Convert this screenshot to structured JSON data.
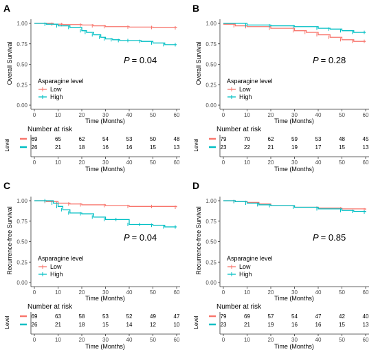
{
  "chart_data": [
    {
      "type": "line",
      "panel_label": "A",
      "ylabel": "Overall Survival",
      "xlabel": "Time (Months)",
      "xlim": [
        0,
        60
      ],
      "ylim": [
        0,
        1
      ],
      "x_ticks": [
        "0",
        "10",
        "20",
        "30",
        "40",
        "50",
        "60"
      ],
      "y_ticks": [
        "0.00",
        "0.25",
        "0.50",
        "0.75",
        "1.00"
      ],
      "p_prefix": "P",
      "p_value": "= 0.04",
      "legend_title": "Asparagine level",
      "legend_position": "bottom-left",
      "series": [
        {
          "name": "Low",
          "color": "#F8766D",
          "x": [
            0,
            8,
            12,
            20,
            25,
            30,
            40,
            50,
            60
          ],
          "y": [
            1.0,
            0.99,
            0.985,
            0.98,
            0.97,
            0.96,
            0.955,
            0.95,
            0.945
          ]
        },
        {
          "name": "High",
          "color": "#00BFC4",
          "x": [
            0,
            5,
            10,
            15,
            20,
            22,
            25,
            28,
            30,
            33,
            36,
            40,
            45,
            50,
            55,
            60
          ],
          "y": [
            1.0,
            0.99,
            0.97,
            0.95,
            0.91,
            0.89,
            0.86,
            0.83,
            0.81,
            0.8,
            0.79,
            0.79,
            0.78,
            0.76,
            0.74,
            0.74
          ]
        }
      ],
      "risk_table": {
        "title": "Number at risk",
        "ylabel": "Level",
        "times": [
          "0",
          "10",
          "20",
          "30",
          "40",
          "50",
          "60"
        ],
        "rows": [
          {
            "name": "Low",
            "color": "#F8766D",
            "values": [
              "69",
              "65",
              "62",
              "54",
              "53",
              "50",
              "48"
            ]
          },
          {
            "name": "High",
            "color": "#00BFC4",
            "values": [
              "26",
              "21",
              "18",
              "16",
              "16",
              "15",
              "13"
            ]
          }
        ]
      }
    },
    {
      "type": "line",
      "panel_label": "B",
      "ylabel": "Overall Survival",
      "xlabel": "Time (Months)",
      "xlim": [
        0,
        60
      ],
      "ylim": [
        0,
        1
      ],
      "x_ticks": [
        "0",
        "10",
        "20",
        "30",
        "40",
        "50",
        "60"
      ],
      "y_ticks": [
        "0.00",
        "0.25",
        "0.50",
        "0.75",
        "1.00"
      ],
      "p_prefix": "P",
      "p_value": "= 0.28",
      "legend_title": "Asparagine level",
      "legend_position": "bottom-left",
      "series": [
        {
          "name": "Low",
          "color": "#F8766D",
          "x": [
            0,
            5,
            10,
            20,
            30,
            35,
            40,
            45,
            50,
            55,
            60
          ],
          "y": [
            0.99,
            0.97,
            0.96,
            0.94,
            0.91,
            0.89,
            0.86,
            0.83,
            0.8,
            0.78,
            0.78
          ]
        },
        {
          "name": "High",
          "color": "#00BFC4",
          "x": [
            0,
            10,
            20,
            30,
            40,
            45,
            50,
            55,
            60
          ],
          "y": [
            1.0,
            0.98,
            0.97,
            0.96,
            0.94,
            0.93,
            0.91,
            0.89,
            0.89
          ]
        }
      ],
      "risk_table": {
        "title": "Number at risk",
        "ylabel": "Level",
        "times": [
          "0",
          "10",
          "20",
          "30",
          "40",
          "50",
          "60"
        ],
        "rows": [
          {
            "name": "Low",
            "color": "#F8766D",
            "values": [
              "79",
              "70",
              "62",
              "59",
              "53",
              "48",
              "45"
            ]
          },
          {
            "name": "High",
            "color": "#00BFC4",
            "values": [
              "23",
              "22",
              "21",
              "19",
              "17",
              "15",
              "13"
            ]
          }
        ]
      }
    },
    {
      "type": "line",
      "panel_label": "C",
      "ylabel": "Recurrence-free Survival",
      "xlabel": "Time (Months)",
      "xlim": [
        0,
        60
      ],
      "ylim": [
        0,
        1
      ],
      "x_ticks": [
        "0",
        "10",
        "20",
        "30",
        "40",
        "50",
        "60"
      ],
      "y_ticks": [
        "0.00",
        "0.25",
        "0.50",
        "0.75",
        "1.00"
      ],
      "p_prefix": "P",
      "p_value": "= 0.04",
      "legend_title": "Asparagine level",
      "legend_position": "bottom-left",
      "series": [
        {
          "name": "Low",
          "color": "#F8766D",
          "x": [
            0,
            5,
            10,
            15,
            20,
            30,
            40,
            50,
            60
          ],
          "y": [
            1.0,
            0.99,
            0.97,
            0.96,
            0.95,
            0.94,
            0.93,
            0.93,
            0.92
          ]
        },
        {
          "name": "High",
          "color": "#00BFC4",
          "x": [
            0,
            5,
            8,
            10,
            12,
            15,
            20,
            25,
            30,
            35,
            40,
            45,
            50,
            55,
            60
          ],
          "y": [
            1.0,
            1.0,
            0.97,
            0.93,
            0.89,
            0.85,
            0.84,
            0.8,
            0.77,
            0.77,
            0.71,
            0.71,
            0.7,
            0.68,
            0.68
          ]
        }
      ],
      "risk_table": {
        "title": "Number at risk",
        "ylabel": "Level",
        "times": [
          "0",
          "10",
          "20",
          "30",
          "40",
          "50",
          "60"
        ],
        "rows": [
          {
            "name": "Low",
            "color": "#F8766D",
            "values": [
              "69",
              "63",
              "58",
              "53",
              "52",
              "49",
              "47"
            ]
          },
          {
            "name": "High",
            "color": "#00BFC4",
            "values": [
              "26",
              "21",
              "18",
              "15",
              "14",
              "12",
              "10"
            ]
          }
        ]
      }
    },
    {
      "type": "line",
      "panel_label": "D",
      "ylabel": "Recurrence-free Survival",
      "xlabel": "Time (Months)",
      "xlim": [
        0,
        60
      ],
      "ylim": [
        0,
        1
      ],
      "x_ticks": [
        "0",
        "10",
        "20",
        "30",
        "40",
        "50",
        "60"
      ],
      "y_ticks": [
        "0.00",
        "0.25",
        "0.50",
        "0.75",
        "1.00"
      ],
      "p_prefix": "P",
      "p_value": "= 0.85",
      "legend_title": "Asparagine level",
      "legend_position": "bottom-left",
      "series": [
        {
          "name": "Low",
          "color": "#F8766D",
          "x": [
            0,
            5,
            10,
            15,
            20,
            30,
            40,
            50,
            60
          ],
          "y": [
            1.0,
            0.99,
            0.98,
            0.96,
            0.94,
            0.92,
            0.91,
            0.9,
            0.89
          ]
        },
        {
          "name": "High",
          "color": "#00BFC4",
          "x": [
            0,
            5,
            10,
            15,
            20,
            30,
            40,
            50,
            55,
            60
          ],
          "y": [
            1.0,
            0.99,
            0.97,
            0.95,
            0.94,
            0.92,
            0.9,
            0.88,
            0.87,
            0.86
          ]
        }
      ],
      "risk_table": {
        "title": "Number at risk",
        "ylabel": "Level",
        "times": [
          "0",
          "10",
          "20",
          "30",
          "40",
          "50",
          "60"
        ],
        "rows": [
          {
            "name": "Low",
            "color": "#F8766D",
            "values": [
              "79",
              "69",
              "57",
              "54",
              "47",
              "42",
              "40"
            ]
          },
          {
            "name": "High",
            "color": "#00BFC4",
            "values": [
              "23",
              "21",
              "19",
              "16",
              "16",
              "15",
              "13"
            ]
          }
        ]
      }
    }
  ]
}
